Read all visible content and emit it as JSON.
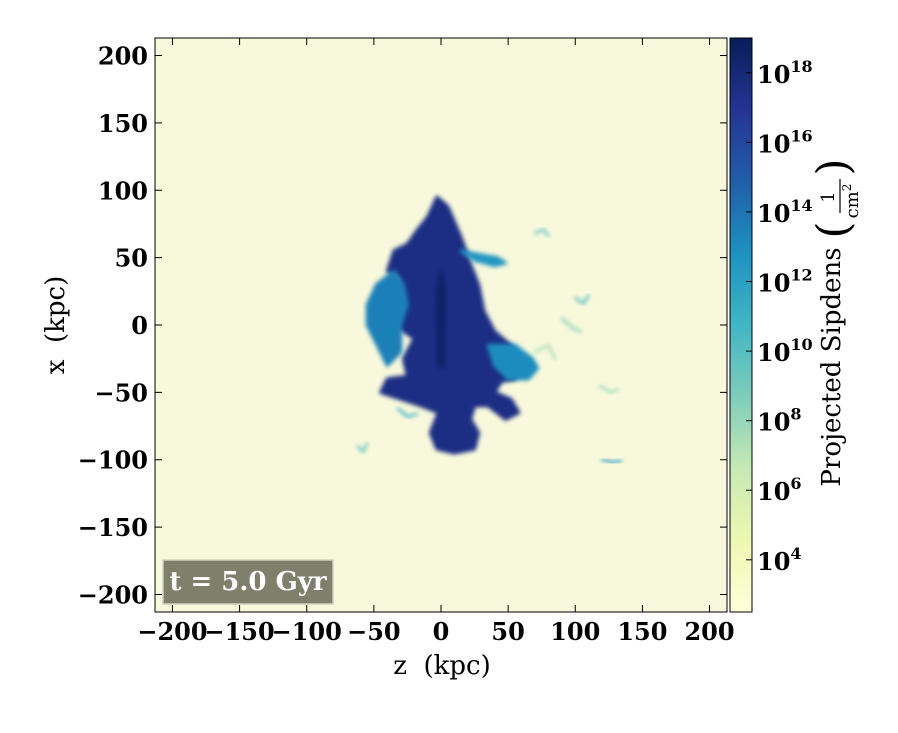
{
  "chart_data": {
    "type": "heatmap",
    "title": "",
    "xlabel": "z  (kpc)",
    "ylabel": "x  (kpc)",
    "xlim": [
      -213,
      213
    ],
    "ylim": [
      -213,
      213
    ],
    "xticks": [
      -200,
      -150,
      -100,
      -50,
      0,
      50,
      100,
      150,
      200
    ],
    "yticks": [
      -200,
      -150,
      -100,
      -50,
      0,
      50,
      100,
      150,
      200
    ],
    "xtick_labels": [
      "−200",
      "−150",
      "−100",
      "−50",
      "0",
      "50",
      "100",
      "150",
      "200"
    ],
    "ytick_labels": [
      "200",
      "150",
      "100",
      "50",
      "0",
      "−50",
      "−100",
      "−150",
      "−200"
    ],
    "colorbar": {
      "label": "Projected Sipdens",
      "unit_numerator": "1",
      "unit_denominator": "cm",
      "unit_denominator_exponent": "2",
      "scale": "log",
      "range_log10": [
        2.5,
        19.0
      ],
      "ticks": [
        {
          "base": "10",
          "exp": "4"
        },
        {
          "base": "10",
          "exp": "6"
        },
        {
          "base": "10",
          "exp": "8"
        },
        {
          "base": "10",
          "exp": "10"
        },
        {
          "base": "10",
          "exp": "12"
        },
        {
          "base": "10",
          "exp": "14"
        },
        {
          "base": "10",
          "exp": "16"
        },
        {
          "base": "10",
          "exp": "18"
        }
      ],
      "tick_log10": [
        4,
        6,
        8,
        10,
        12,
        14,
        16,
        18
      ],
      "colormap": "YlGnBu",
      "colormap_colors": [
        "#ffffd9",
        "#edf8b1",
        "#c7e9b4",
        "#7fcdbb",
        "#41b6c4",
        "#1d91c0",
        "#225ea8",
        "#253494",
        "#081d58"
      ]
    },
    "background_color": "#f8f9dc",
    "annotation": {
      "text": "t = 5.0 Gyr",
      "background_color": "#7f806c",
      "text_color": "#ffffff"
    },
    "features": [
      {
        "name": "main-body",
        "points": [
          [
            -3,
            95
          ],
          [
            5,
            88
          ],
          [
            15,
            65
          ],
          [
            22,
            45
          ],
          [
            28,
            30
          ],
          [
            32,
            10
          ],
          [
            40,
            -5
          ],
          [
            52,
            -15
          ],
          [
            60,
            -30
          ],
          [
            55,
            -40
          ],
          [
            45,
            -42
          ],
          [
            40,
            -50
          ],
          [
            52,
            -55
          ],
          [
            58,
            -65
          ],
          [
            48,
            -70
          ],
          [
            35,
            -60
          ],
          [
            25,
            -60
          ],
          [
            22,
            -70
          ],
          [
            28,
            -80
          ],
          [
            25,
            -92
          ],
          [
            10,
            -95
          ],
          [
            -3,
            -92
          ],
          [
            -8,
            -80
          ],
          [
            -2,
            -65
          ],
          [
            -15,
            -60
          ],
          [
            -30,
            -55
          ],
          [
            -45,
            -50
          ],
          [
            -40,
            -40
          ],
          [
            -25,
            -38
          ],
          [
            -28,
            -25
          ],
          [
            -20,
            -10
          ],
          [
            -35,
            0
          ],
          [
            -45,
            -10
          ],
          [
            -50,
            0
          ],
          [
            -45,
            15
          ],
          [
            -35,
            25
          ],
          [
            -30,
            35
          ],
          [
            -40,
            40
          ],
          [
            -35,
            55
          ],
          [
            -25,
            60
          ],
          [
            -18,
            70
          ],
          [
            -10,
            80
          ]
        ],
        "log10_density": 17.5
      },
      {
        "name": "left-lobe",
        "points": [
          [
            -35,
            40
          ],
          [
            -48,
            30
          ],
          [
            -55,
            15
          ],
          [
            -55,
            0
          ],
          [
            -45,
            -20
          ],
          [
            -40,
            -30
          ],
          [
            -30,
            -20
          ],
          [
            -30,
            0
          ],
          [
            -25,
            15
          ],
          [
            -28,
            30
          ]
        ],
        "log10_density": 13.5
      },
      {
        "name": "right-lobe",
        "points": [
          [
            35,
            -15
          ],
          [
            55,
            -15
          ],
          [
            68,
            -25
          ],
          [
            72,
            -32
          ],
          [
            65,
            -40
          ],
          [
            50,
            -40
          ],
          [
            40,
            -30
          ]
        ],
        "log10_density": 13.0
      },
      {
        "name": "arm-upper-right",
        "points": [
          [
            15,
            55
          ],
          [
            30,
            52
          ],
          [
            42,
            50
          ],
          [
            48,
            46
          ],
          [
            40,
            44
          ],
          [
            25,
            48
          ]
        ],
        "log10_density": 12.5
      },
      {
        "name": "core",
        "points": [
          [
            -2,
            -30
          ],
          [
            2,
            -30
          ],
          [
            3,
            25
          ],
          [
            0,
            40
          ],
          [
            -3,
            25
          ]
        ],
        "log10_density": 18.5
      }
    ],
    "filaments": [
      {
        "points": [
          [
            70,
            68
          ],
          [
            76,
            71
          ],
          [
            80,
            66
          ]
        ],
        "log10_density": 9.5
      },
      {
        "points": [
          [
            90,
            5
          ],
          [
            98,
            -2
          ],
          [
            104,
            -5
          ]
        ],
        "log10_density": 8.5
      },
      {
        "points": [
          [
            100,
            20
          ],
          [
            106,
            16
          ],
          [
            110,
            22
          ]
        ],
        "log10_density": 10
      },
      {
        "points": [
          [
            120,
            -100
          ],
          [
            128,
            -102
          ],
          [
            134,
            -101
          ]
        ],
        "log10_density": 12.5
      },
      {
        "points": [
          [
            -62,
            -90
          ],
          [
            -58,
            -94
          ],
          [
            -55,
            -88
          ]
        ],
        "log10_density": 9.5
      },
      {
        "points": [
          [
            -32,
            -62
          ],
          [
            -25,
            -68
          ],
          [
            -18,
            -66
          ]
        ],
        "log10_density": 11
      },
      {
        "points": [
          [
            70,
            -20
          ],
          [
            80,
            -15
          ],
          [
            85,
            -25
          ]
        ],
        "log10_density": 7.5
      },
      {
        "points": [
          [
            118,
            -45
          ],
          [
            126,
            -50
          ],
          [
            132,
            -48
          ]
        ],
        "log10_density": 8
      }
    ]
  }
}
